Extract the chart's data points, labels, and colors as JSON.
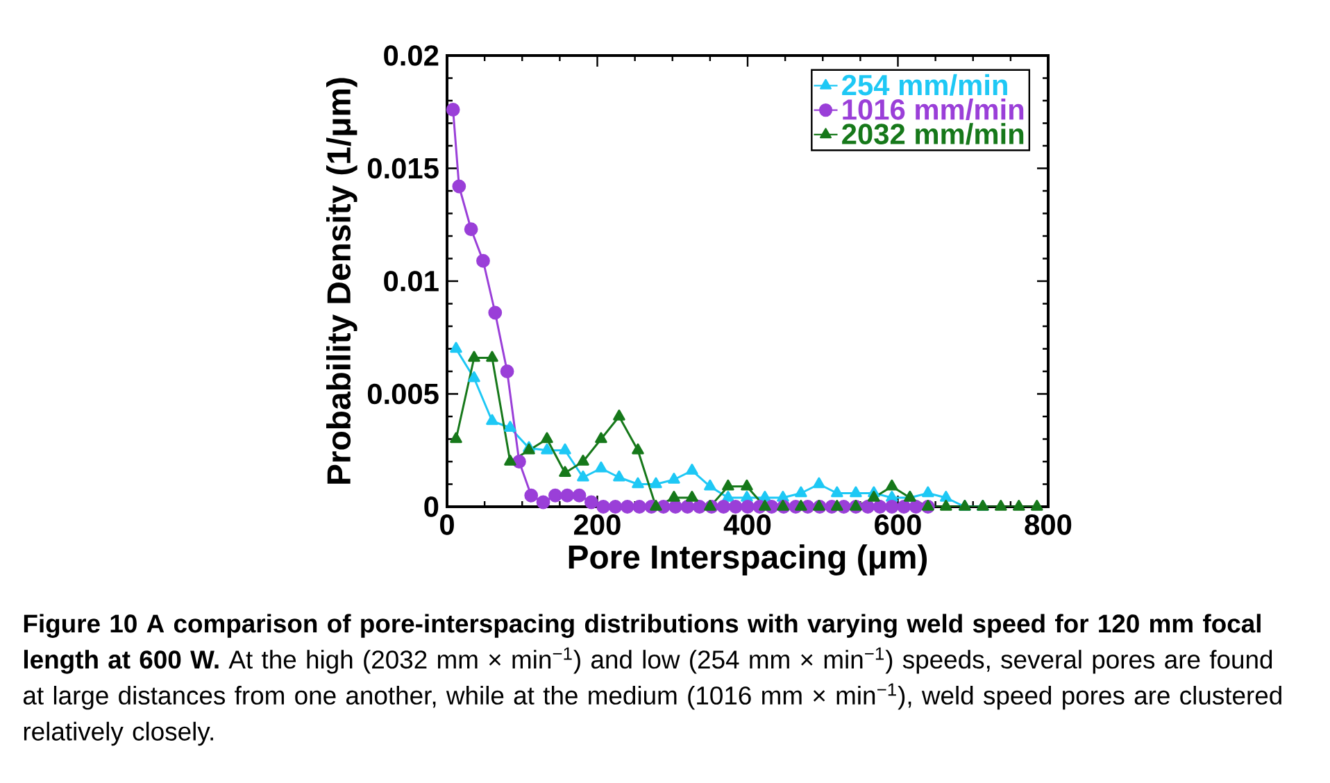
{
  "chart_data": {
    "type": "line",
    "xlabel": "Pore Interspacing (μm)",
    "ylabel": "Probability Density (1/μm)",
    "xlim": [
      0,
      800
    ],
    "xticks": [
      0,
      200,
      400,
      600,
      800
    ],
    "ylim": [
      0,
      0.02
    ],
    "yticks": [
      0,
      0.005,
      0.01,
      0.015,
      0.02
    ],
    "legend": "top right",
    "grid": false,
    "line_style": "solid",
    "series": [
      {
        "name": "254 mm/min",
        "color": "#1ec8f5",
        "marker": "triangle",
        "x": [
          12,
          36,
          60,
          84,
          109,
          133,
          157,
          181,
          205,
          229,
          254,
          278,
          302,
          326,
          350,
          374,
          399,
          423,
          447,
          471,
          495,
          519,
          544,
          568,
          592,
          616,
          640,
          664,
          689,
          713
        ],
        "values": [
          0.007,
          0.0057,
          0.0038,
          0.0035,
          0.0026,
          0.0025,
          0.0025,
          0.0013,
          0.0017,
          0.0013,
          0.001,
          0.001,
          0.0012,
          0.0016,
          0.0009,
          0.0004,
          0.0004,
          0.0004,
          0.0004,
          0.0006,
          0.001,
          0.0006,
          0.0006,
          0.0006,
          0.0004,
          0.0004,
          0.0006,
          0.0004,
          0,
          0
        ]
      },
      {
        "name": "1016 mm/min",
        "color": "#9a3fd8",
        "marker": "circle",
        "x": [
          8,
          16,
          32,
          48,
          64,
          80,
          96,
          112,
          128,
          144,
          160,
          176,
          192,
          208,
          224,
          240,
          256,
          272,
          288,
          304,
          320,
          336,
          352,
          368,
          384,
          400,
          416,
          432,
          448,
          464,
          480,
          496,
          512,
          528,
          544,
          560,
          576,
          592,
          608,
          624,
          640
        ],
        "values": [
          0.0176,
          0.0142,
          0.0123,
          0.0109,
          0.0086,
          0.006,
          0.002,
          0.0005,
          0.0002,
          0.0005,
          0.0005,
          0.0005,
          0.0002,
          0,
          0,
          0,
          0,
          0,
          0,
          0,
          0,
          0,
          0,
          0,
          0,
          0,
          0,
          0,
          0,
          0,
          0,
          0,
          0,
          0,
          0,
          0,
          0,
          0,
          0,
          0,
          0
        ]
      },
      {
        "name": "2032 mm/min",
        "color": "#16781a",
        "marker": "triangle",
        "x": [
          12,
          36,
          60,
          84,
          109,
          133,
          157,
          181,
          205,
          229,
          254,
          278,
          302,
          326,
          350,
          374,
          399,
          423,
          447,
          471,
          495,
          519,
          544,
          568,
          592,
          616,
          640,
          664,
          689,
          713,
          737,
          761,
          785
        ],
        "values": [
          0.003,
          0.0066,
          0.0066,
          0.002,
          0.0025,
          0.003,
          0.0015,
          0.002,
          0.003,
          0.004,
          0.0025,
          0,
          0.0004,
          0.0004,
          0,
          0.0009,
          0.0009,
          0,
          0,
          0,
          0,
          0,
          0,
          0.0004,
          0.0009,
          0.0004,
          0,
          0,
          0,
          0,
          0,
          0,
          0
        ]
      }
    ],
    "annotations": [
      "**Figure 10 A comparison of pore-interspacing distributions with varying weld speed for 120 mm focal length at 600 W.** At the high (2032 mm × min$^{−1}$) and low (254 mm × min$^{−1}$) speeds, several pores are found at large distances from one another, while at the medium (1016 mm × min$^{−1}$), weld speed pores are clustered relatively closely."
    ]
  }
}
